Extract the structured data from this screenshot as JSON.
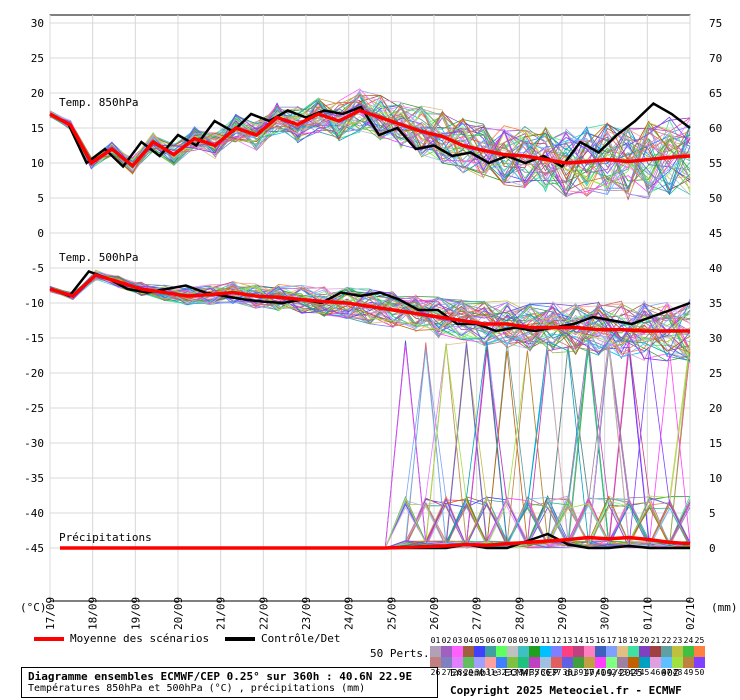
{
  "chart_data": {
    "type": "line",
    "x_dates": [
      "17/09",
      "18/09",
      "19/09",
      "20/09",
      "21/09",
      "22/09",
      "23/09",
      "24/09",
      "25/09",
      "26/09",
      "27/09",
      "28/09",
      "29/09",
      "30/09",
      "01/10",
      "02/10"
    ],
    "unit_left": "(°C)",
    "unit_right": "(mm)",
    "left_ticks": [
      30,
      25,
      20,
      15,
      10,
      5,
      0,
      -5,
      -10,
      -15,
      -20,
      -25,
      -30,
      -35,
      -40,
      -45
    ],
    "right_ticks": [
      75,
      70,
      65,
      60,
      55,
      50,
      45,
      40,
      35,
      30,
      25,
      20,
      15,
      10,
      5,
      0
    ],
    "panels": {
      "t850": {
        "label": "Temp. 850hPa",
        "ylim": [
          0,
          30
        ],
        "mean": [
          17,
          15.4,
          10,
          12,
          9.6,
          13,
          11.2,
          13.5,
          12.5,
          15,
          14,
          16.5,
          15.5,
          17,
          16,
          17.5,
          16.5,
          15.5,
          14.5,
          13.8,
          12.5,
          11.8,
          11.2,
          11,
          10.5,
          10,
          10.2,
          10.5,
          10.2,
          10.5,
          10.8,
          11
        ],
        "control": [
          17,
          15.6,
          10,
          12,
          9.5,
          13,
          11,
          14,
          12.5,
          16,
          14.5,
          17,
          16,
          17.5,
          16.5,
          17.5,
          17,
          18,
          14,
          15,
          12,
          12.5,
          11,
          11.5,
          10,
          11,
          10,
          11,
          9.5,
          13,
          11.5,
          14,
          16,
          18.5,
          17,
          15
        ]
      },
      "t500": {
        "label": "Temp. 500hPa",
        "ylim": [
          -20,
          -5
        ],
        "mean": [
          -8,
          -9,
          -6,
          -7,
          -8,
          -8.5,
          -9,
          -8.8,
          -8.5,
          -9,
          -9.2,
          -9.5,
          -9.8,
          -10,
          -10.5,
          -11,
          -11.5,
          -12,
          -12.5,
          -13,
          -13,
          -13.5,
          -13.5,
          -13.5,
          -13.8,
          -13.8,
          -14,
          -14,
          -14
        ],
        "control": [
          -8,
          -9,
          -5.5,
          -6.5,
          -8,
          -8.5,
          -8,
          -7.5,
          -8.5,
          -9,
          -9.5,
          -9.8,
          -10,
          -9.5,
          -10,
          -8.5,
          -9,
          -8.5,
          -9.5,
          -11,
          -11,
          -13,
          -13,
          -14,
          -13.5,
          -14,
          -13.5,
          -13,
          -12,
          -12.5,
          -13,
          -12,
          -11,
          -10
        ]
      },
      "precip": {
        "label": "Précipitations",
        "ylim": [
          0,
          45
        ],
        "mean": [
          0,
          0,
          0,
          0,
          0,
          0,
          0,
          0,
          0,
          0,
          0,
          0,
          0,
          0,
          0,
          0,
          0,
          0.1,
          0.2,
          0.3,
          0.5,
          0.4,
          0.6,
          0.8,
          1,
          1.2,
          1.5,
          1.3,
          1.5,
          1.2,
          0.8,
          0.6
        ],
        "control": [
          0,
          0,
          0,
          0,
          0,
          0,
          0,
          0,
          0,
          0,
          0,
          0,
          0,
          0,
          0,
          0,
          0,
          0,
          0,
          0,
          0.5,
          0,
          0,
          1,
          2,
          0.5,
          0,
          0,
          0.3,
          0,
          0,
          0
        ]
      }
    },
    "series": [
      {
        "name": "Moyenne des scénarios",
        "color": "#ff0000"
      },
      {
        "name": "Contrôle/Det",
        "color": "#000000"
      }
    ],
    "members_label": "50 Perts.",
    "members": [
      "01",
      "02",
      "03",
      "04",
      "05",
      "06",
      "07",
      "08",
      "09",
      "10",
      "11",
      "12",
      "13",
      "14",
      "15",
      "16",
      "17",
      "18",
      "19",
      "20",
      "21",
      "22",
      "23",
      "24",
      "25",
      "26",
      "27",
      "28",
      "29",
      "30",
      "31",
      "32",
      "33",
      "34",
      "35",
      "36",
      "37",
      "38",
      "39",
      "40",
      "41",
      "42",
      "43",
      "44",
      "45",
      "46",
      "47",
      "48",
      "49",
      "50"
    ],
    "member_colors": [
      "#b0a0b8",
      "#a060c0",
      "#ff60ff",
      "#a06040",
      "#4040ff",
      "#40a0a0",
      "#60ff60",
      "#c0c0c0",
      "#40c0c0",
      "#20a020",
      "#00c0ff",
      "#8080ff",
      "#ff4080",
      "#c04080",
      "#ff80c0",
      "#4060c0",
      "#80a0ff",
      "#e0c080",
      "#40e0a0",
      "#8040c0",
      "#a04040",
      "#60a0a0",
      "#c0c040",
      "#40c040",
      "#ff8040",
      "#c08080",
      "#8080c0",
      "#e080ff",
      "#60c060",
      "#a0a0ff",
      "#ffa0a0",
      "#4080ff",
      "#80c040",
      "#20c080",
      "#c040c0",
      "#a0c0e0",
      "#e06060",
      "#6060e0",
      "#40a040",
      "#c0a040",
      "#ff40ff",
      "#80ff80",
      "#a080a0",
      "#c06000",
      "#00a0c0",
      "#e0a0e0",
      "#60c0ff",
      "#a0e040",
      "#c08040",
      "#8040ff"
    ]
  },
  "footer": {
    "title": "Diagramme ensembles ECMWF/CEP 0.25° sur 360h : 40.6N 22.9E",
    "subtitle": "Températures 850hPa et 500hPa (°C) , précipitations (mm)",
    "run": "Ensemble ECMWF/CEP du 17/09/2025 - 00Z",
    "copyright": "Copyright 2025 Meteociel.fr - ECMWF"
  }
}
